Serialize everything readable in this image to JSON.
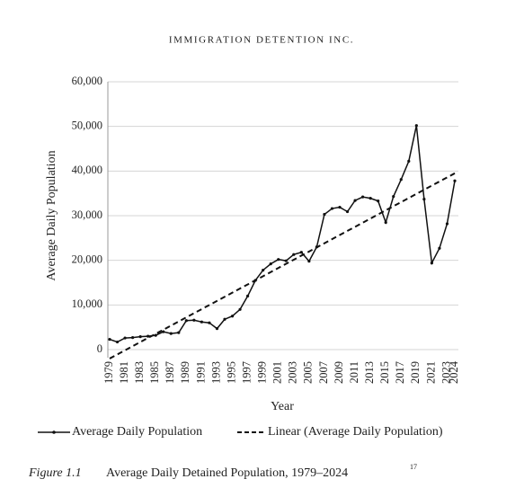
{
  "header": "IMMIGRATION DETENTION INC.",
  "chart_data": {
    "type": "line",
    "ylabel": "Average Daily Population",
    "xlabel": "Year",
    "categories": [
      "1979",
      null,
      "1981",
      null,
      "1983",
      null,
      "1985",
      null,
      "1987",
      null,
      "1989",
      null,
      "1991",
      null,
      "1993",
      null,
      "1995",
      null,
      "1997",
      null,
      "1999",
      null,
      "2001",
      null,
      "2003",
      null,
      "2005",
      null,
      "2007",
      null,
      "2009",
      null,
      "2011",
      null,
      "2013",
      null,
      "2015",
      null,
      "2017",
      null,
      "2019",
      null,
      "2021",
      null,
      "2023",
      "2024"
    ],
    "series": [
      {
        "name": "Average Daily Population",
        "color": "#111111",
        "values": [
          2300,
          1700,
          2600,
          2700,
          2900,
          3000,
          3200,
          4000,
          3600,
          3800,
          6500,
          6600,
          6200,
          6000,
          4700,
          6800,
          7500,
          9000,
          12000,
          15500,
          17800,
          19200,
          20200,
          19900,
          21300,
          21800,
          19800,
          23000,
          30300,
          31600,
          31900,
          30900,
          33400,
          34200,
          33900,
          33300,
          28500,
          34300,
          38100,
          42200,
          50200,
          33700,
          19400,
          22700,
          28200,
          37800
        ]
      }
    ],
    "trend": {
      "name": "Linear (Average Daily Population)",
      "color": "#111111",
      "values": [
        -2000,
        39500
      ]
    },
    "ylim": [
      0,
      60000
    ],
    "yticks": [
      0,
      {
        "value": 10000,
        "label": "10,000"
      },
      {
        "value": 20000,
        "label": "20,000"
      },
      {
        "value": 30000,
        "label": "30,000"
      },
      {
        "value": 40000,
        "label": "40,000"
      },
      {
        "value": 50000,
        "label": "50,000"
      },
      {
        "value": 60000,
        "label": "60,000"
      }
    ],
    "grid": true,
    "legend": "bottom"
  },
  "caption": {
    "label": "Figure 1.1",
    "text": "Average Daily Detained Population, 1979–2024",
    "note": "17"
  }
}
